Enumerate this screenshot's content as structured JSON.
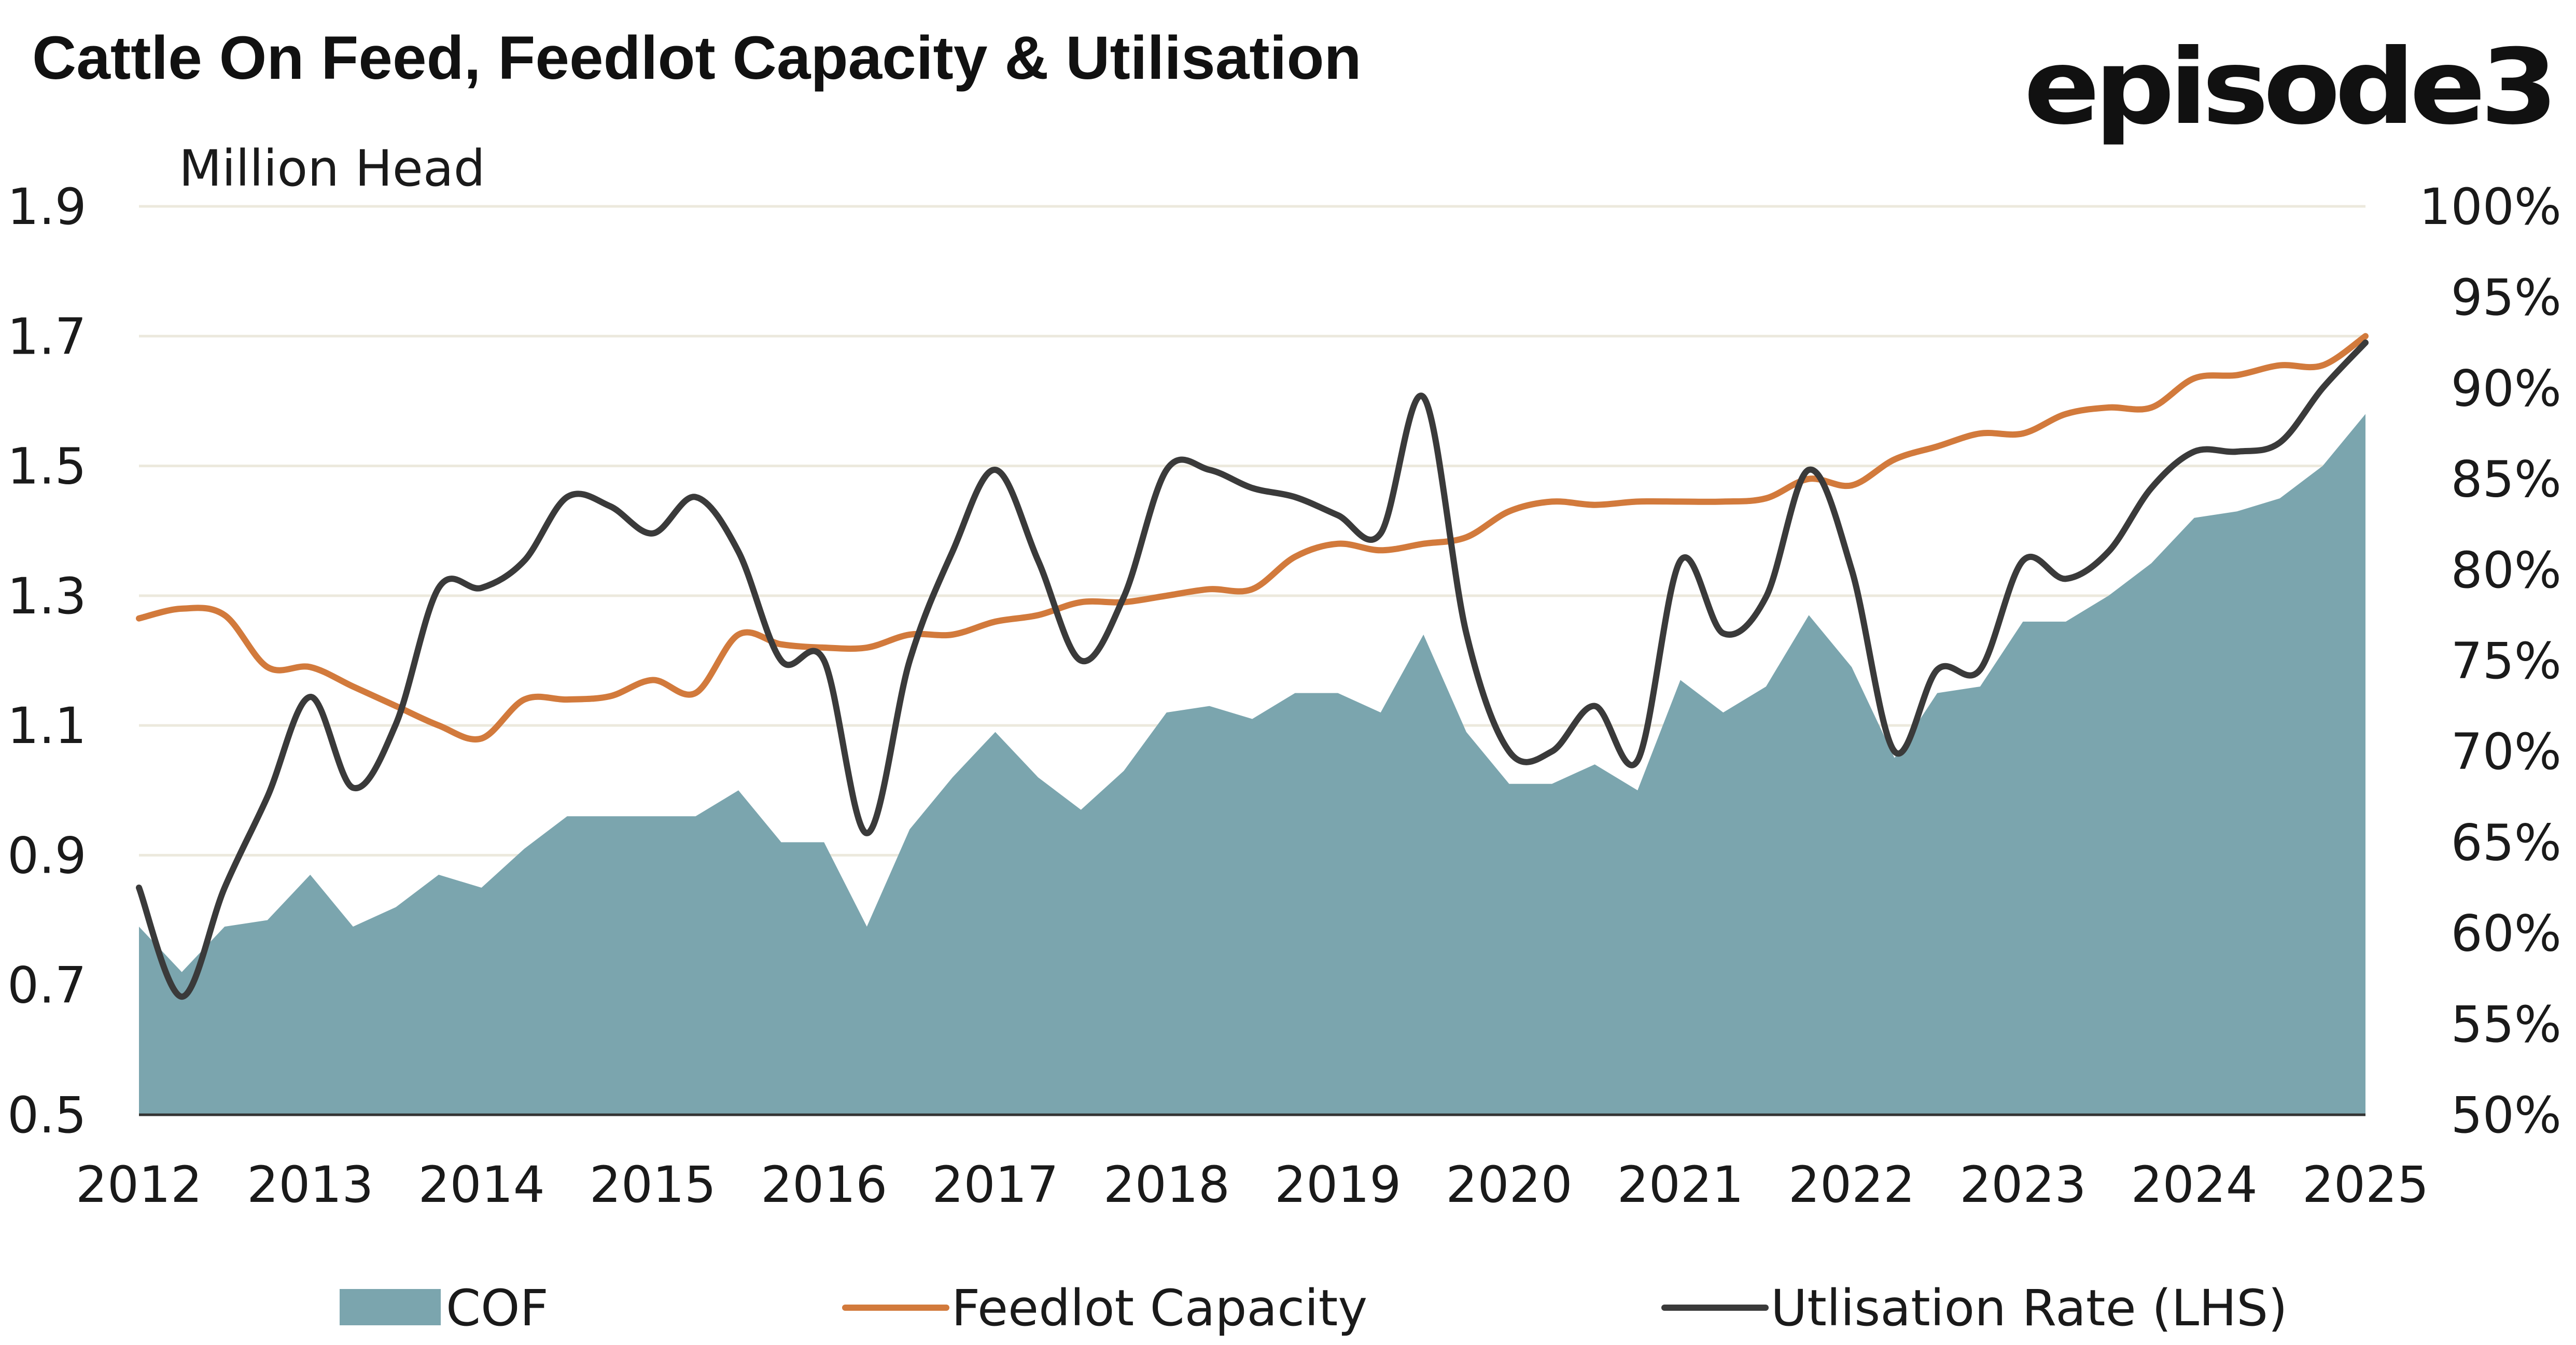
{
  "header": {
    "title": "Cattle On Feed, Feedlot Capacity & Utilisation",
    "logo_text": "episode3"
  },
  "chart_data": {
    "type": "area",
    "title": "Cattle On Feed, Feedlot Capacity & Utilisation",
    "ylabel": "Million Head",
    "y_left": {
      "ticks": [
        "0.5",
        "0.7",
        "0.9",
        "1.1",
        "1.3",
        "1.5",
        "1.7",
        "1.9"
      ],
      "range": [
        0.5,
        1.9
      ]
    },
    "y_right": {
      "ticks": [
        "50%",
        "55%",
        "60%",
        "65%",
        "70%",
        "75%",
        "80%",
        "85%",
        "90%",
        "95%",
        "100%"
      ],
      "range": [
        50,
        100
      ]
    },
    "x_ticks": [
      "2012",
      "2013",
      "2014",
      "2015",
      "2016",
      "2017",
      "2018",
      "2019",
      "2020",
      "2021",
      "2022",
      "2023",
      "2024",
      "2025"
    ],
    "x_range": [
      2012.0,
      2025.0
    ],
    "gridlines": true,
    "legend_position": "bottom",
    "x": [
      2012.0,
      2012.25,
      2012.5,
      2012.75,
      2013.0,
      2013.25,
      2013.5,
      2013.75,
      2014.0,
      2014.25,
      2014.5,
      2014.75,
      2015.0,
      2015.25,
      2015.5,
      2015.75,
      2016.0,
      2016.25,
      2016.5,
      2016.75,
      2017.0,
      2017.25,
      2017.5,
      2017.75,
      2018.0,
      2018.25,
      2018.5,
      2018.75,
      2019.0,
      2019.25,
      2019.5,
      2019.75,
      2020.0,
      2020.25,
      2020.5,
      2020.75,
      2021.0,
      2021.25,
      2021.5,
      2021.75,
      2022.0,
      2022.25,
      2022.5,
      2022.75,
      2023.0,
      2023.25,
      2023.5,
      2023.75,
      2024.0,
      2024.25,
      2024.5,
      2024.75,
      2025.0
    ],
    "series": [
      {
        "name": "COF",
        "style": "area",
        "axis": "left",
        "color": "#7ba5ae",
        "values": [
          0.79,
          0.72,
          0.79,
          0.8,
          0.87,
          0.79,
          0.82,
          0.87,
          0.85,
          0.91,
          0.96,
          0.96,
          0.96,
          0.96,
          1.0,
          0.92,
          0.92,
          0.79,
          0.94,
          1.02,
          1.09,
          1.02,
          0.97,
          1.03,
          1.12,
          1.13,
          1.11,
          1.15,
          1.15,
          1.12,
          1.24,
          1.09,
          1.01,
          1.01,
          1.04,
          1.0,
          1.17,
          1.12,
          1.16,
          1.27,
          1.19,
          1.05,
          1.15,
          1.16,
          1.26,
          1.26,
          1.3,
          1.35,
          1.42,
          1.43,
          1.45,
          1.5,
          1.58
        ]
      },
      {
        "name": "Feedlot Capacity",
        "style": "line",
        "axis": "left",
        "color": "#d27a3c",
        "values": [
          1.265,
          1.28,
          1.27,
          1.19,
          1.19,
          1.16,
          1.13,
          1.1,
          1.08,
          1.14,
          1.14,
          1.145,
          1.17,
          1.15,
          1.24,
          1.225,
          1.22,
          1.22,
          1.24,
          1.24,
          1.26,
          1.27,
          1.29,
          1.29,
          1.3,
          1.31,
          1.31,
          1.36,
          1.38,
          1.37,
          1.38,
          1.39,
          1.43,
          1.445,
          1.44,
          1.445,
          1.445,
          1.445,
          1.45,
          1.48,
          1.47,
          1.51,
          1.53,
          1.55,
          1.55,
          1.58,
          1.59,
          1.59,
          1.635,
          1.64,
          1.655,
          1.655,
          1.7
        ]
      },
      {
        "name": "Utlisation Rate (LHS)",
        "style": "line",
        "axis": "right",
        "color": "#3a3a3a",
        "values": [
          62.5,
          56.5,
          62.5,
          67.5,
          73.0,
          68.0,
          71.5,
          79.0,
          79.0,
          80.5,
          84.0,
          83.5,
          82.0,
          84.0,
          81.0,
          75.0,
          75.0,
          65.5,
          75.0,
          81.0,
          85.5,
          80.5,
          75.0,
          78.5,
          85.5,
          85.5,
          84.5,
          84.0,
          83.0,
          82.0,
          89.5,
          76.5,
          70.0,
          70.0,
          72.5,
          69.5,
          80.5,
          76.5,
          78.5,
          85.5,
          80.0,
          70.0,
          74.5,
          74.5,
          80.5,
          79.5,
          81.0,
          84.5,
          86.5,
          86.5,
          87.0,
          90.0,
          92.5
        ]
      }
    ]
  }
}
